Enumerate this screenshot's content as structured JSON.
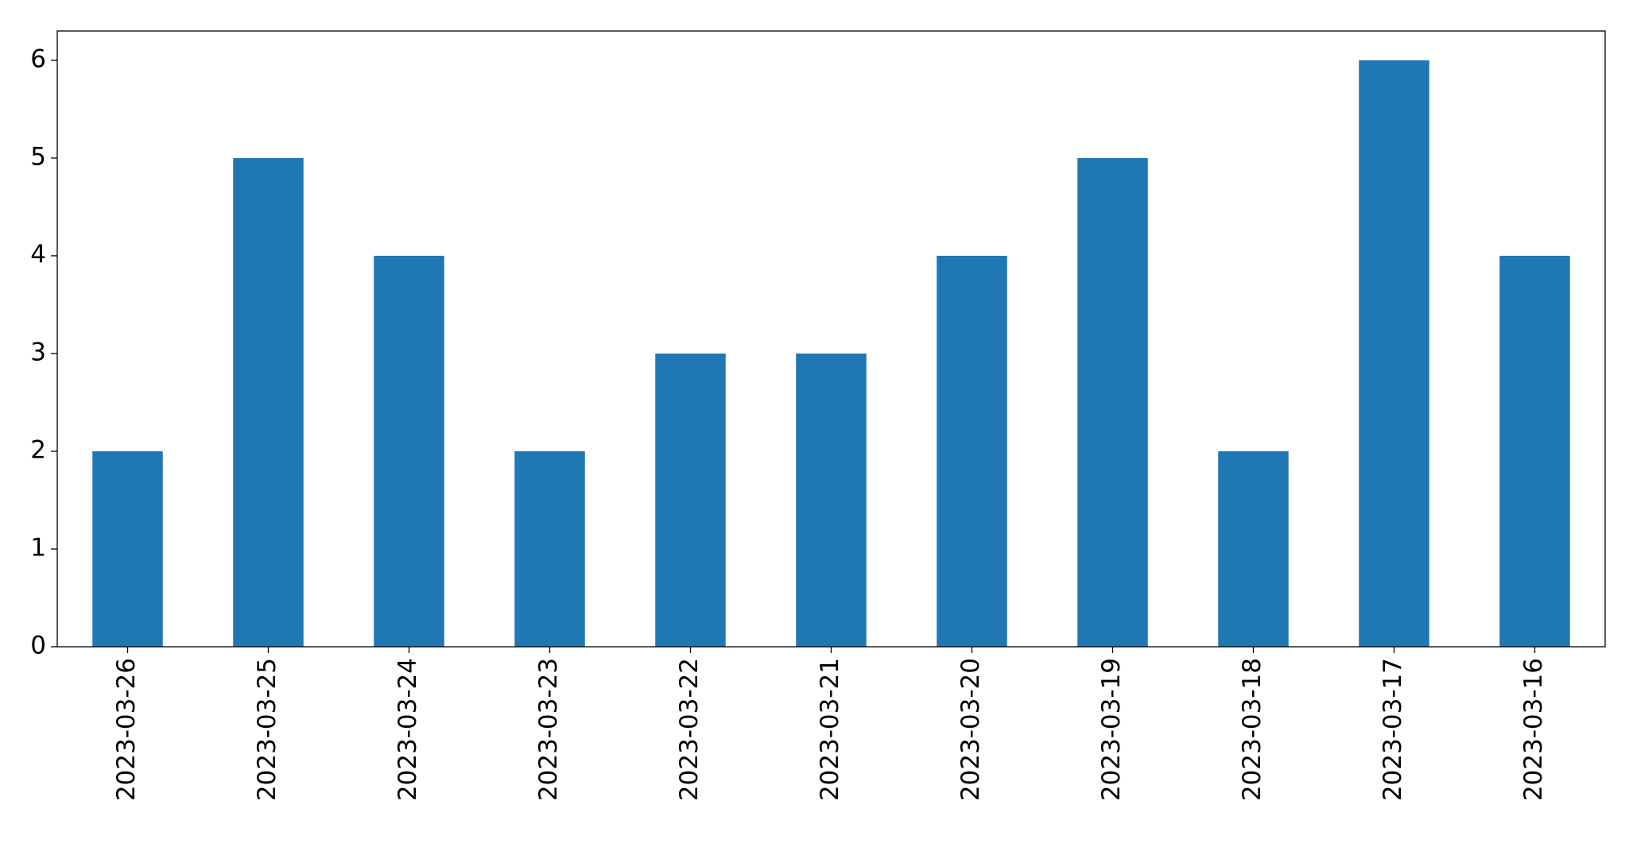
{
  "chart_data": {
    "type": "bar",
    "categories": [
      "2023-03-26",
      "2023-03-25",
      "2023-03-24",
      "2023-03-23",
      "2023-03-22",
      "2023-03-21",
      "2023-03-20",
      "2023-03-19",
      "2023-03-18",
      "2023-03-17",
      "2023-03-16"
    ],
    "values": [
      2,
      5,
      4,
      2,
      3,
      3,
      4,
      5,
      2,
      6,
      4
    ],
    "color": "#1f77b4",
    "ylim": [
      0,
      6.3
    ],
    "yticks": [
      0,
      1,
      2,
      3,
      4,
      5,
      6
    ],
    "grid": false
  }
}
